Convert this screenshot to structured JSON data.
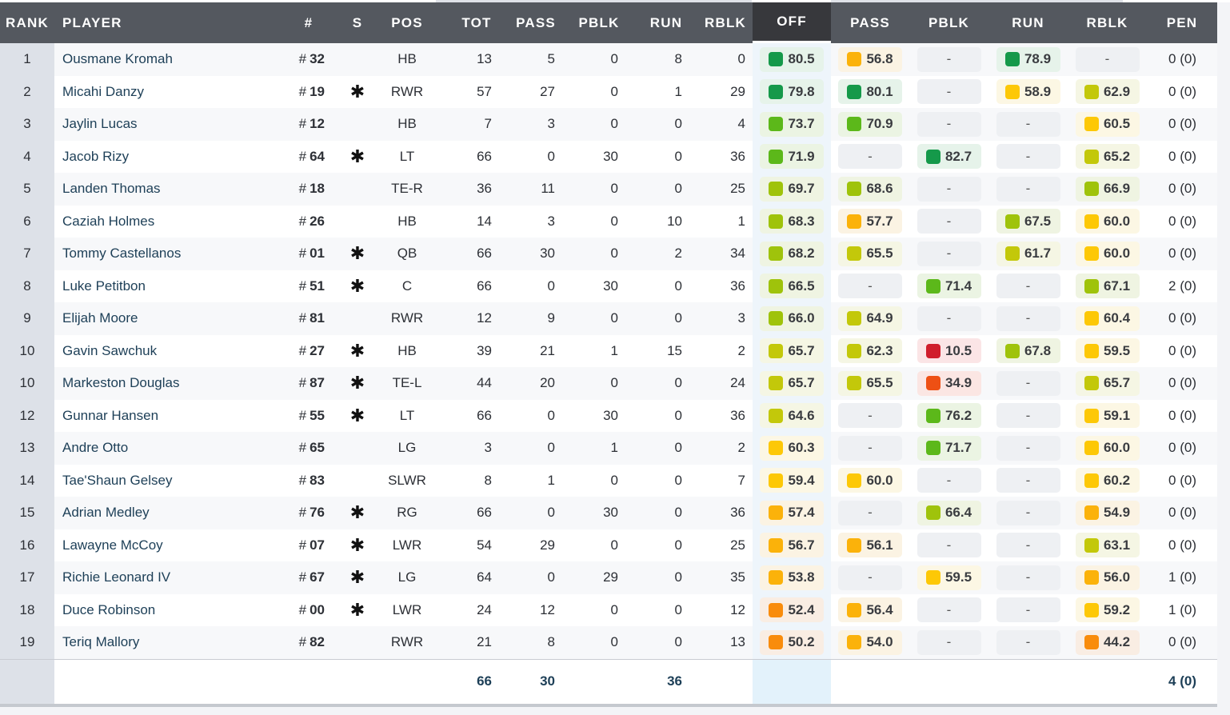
{
  "header": {
    "rank": "RANK",
    "player": "PLAYER",
    "number": "#",
    "starter": "S",
    "pos": "POS",
    "tot": "TOT",
    "pass": "PASS",
    "pblk": "PBLK",
    "run": "RUN",
    "rblk": "RBLK",
    "off": "OFF",
    "grade_pass": "PASS",
    "grade_pblk": "PBLK",
    "grade_run": "RUN",
    "grade_rblk": "RBLK",
    "pen": "PEN"
  },
  "colors": {
    "header_bg": "#54585f",
    "off_header_bg": "#37383c",
    "player_link": "#1d3f57",
    "grade_dark_green": "#15994a",
    "grade_green": "#5cb81a",
    "grade_lime": "#9fc30b",
    "grade_yellow_green": "#c3c80a",
    "grade_yellow": "#fdc806",
    "grade_amber": "#fbb20a",
    "grade_orange": "#f98c0c",
    "grade_red_orange": "#ee5014",
    "grade_red": "#d01e2c"
  },
  "rows": [
    {
      "rank": "1",
      "player": "Ousmane Kromah",
      "num": "32",
      "starter": "",
      "pos": "HB",
      "tot": "13",
      "pass": "5",
      "pblk": "0",
      "run": "8",
      "rblk": "0",
      "off": "80.5",
      "g_pass": "56.8",
      "g_pblk": "-",
      "g_run": "78.9",
      "g_rblk": "-",
      "pen": "0 (0)"
    },
    {
      "rank": "2",
      "player": "Micahi Danzy",
      "num": "19",
      "starter": "*",
      "pos": "RWR",
      "tot": "57",
      "pass": "27",
      "pblk": "0",
      "run": "1",
      "rblk": "29",
      "off": "79.8",
      "g_pass": "80.1",
      "g_pblk": "-",
      "g_run": "58.9",
      "g_rblk": "62.9",
      "pen": "0 (0)"
    },
    {
      "rank": "3",
      "player": "Jaylin Lucas",
      "num": "12",
      "starter": "",
      "pos": "HB",
      "tot": "7",
      "pass": "3",
      "pblk": "0",
      "run": "0",
      "rblk": "4",
      "off": "73.7",
      "g_pass": "70.9",
      "g_pblk": "-",
      "g_run": "-",
      "g_rblk": "60.5",
      "pen": "0 (0)"
    },
    {
      "rank": "4",
      "player": "Jacob Rizy",
      "num": "64",
      "starter": "*",
      "pos": "LT",
      "tot": "66",
      "pass": "0",
      "pblk": "30",
      "run": "0",
      "rblk": "36",
      "off": "71.9",
      "g_pass": "-",
      "g_pblk": "82.7",
      "g_run": "-",
      "g_rblk": "65.2",
      "pen": "0 (0)"
    },
    {
      "rank": "5",
      "player": "Landen Thomas",
      "num": "18",
      "starter": "",
      "pos": "TE-R",
      "tot": "36",
      "pass": "11",
      "pblk": "0",
      "run": "0",
      "rblk": "25",
      "off": "69.7",
      "g_pass": "68.6",
      "g_pblk": "-",
      "g_run": "-",
      "g_rblk": "66.9",
      "pen": "0 (0)"
    },
    {
      "rank": "6",
      "player": "Caziah Holmes",
      "num": "26",
      "starter": "",
      "pos": "HB",
      "tot": "14",
      "pass": "3",
      "pblk": "0",
      "run": "10",
      "rblk": "1",
      "off": "68.3",
      "g_pass": "57.7",
      "g_pblk": "-",
      "g_run": "67.5",
      "g_rblk": "60.0",
      "pen": "0 (0)"
    },
    {
      "rank": "7",
      "player": "Tommy Castellanos",
      "num": "01",
      "starter": "*",
      "pos": "QB",
      "tot": "66",
      "pass": "30",
      "pblk": "0",
      "run": "2",
      "rblk": "34",
      "off": "68.2",
      "g_pass": "65.5",
      "g_pblk": "-",
      "g_run": "61.7",
      "g_rblk": "60.0",
      "pen": "0 (0)"
    },
    {
      "rank": "8",
      "player": "Luke Petitbon",
      "num": "51",
      "starter": "*",
      "pos": "C",
      "tot": "66",
      "pass": "0",
      "pblk": "30",
      "run": "0",
      "rblk": "36",
      "off": "66.5",
      "g_pass": "-",
      "g_pblk": "71.4",
      "g_run": "-",
      "g_rblk": "67.1",
      "pen": "2 (0)"
    },
    {
      "rank": "9",
      "player": "Elijah Moore",
      "num": "81",
      "starter": "",
      "pos": "RWR",
      "tot": "12",
      "pass": "9",
      "pblk": "0",
      "run": "0",
      "rblk": "3",
      "off": "66.0",
      "g_pass": "64.9",
      "g_pblk": "-",
      "g_run": "-",
      "g_rblk": "60.4",
      "pen": "0 (0)"
    },
    {
      "rank": "10",
      "player": "Gavin Sawchuk",
      "num": "27",
      "starter": "*",
      "pos": "HB",
      "tot": "39",
      "pass": "21",
      "pblk": "1",
      "run": "15",
      "rblk": "2",
      "off": "65.7",
      "g_pass": "62.3",
      "g_pblk": "10.5",
      "g_run": "67.8",
      "g_rblk": "59.5",
      "pen": "0 (0)"
    },
    {
      "rank": "10",
      "player": "Markeston Douglas",
      "num": "87",
      "starter": "*",
      "pos": "TE-L",
      "tot": "44",
      "pass": "20",
      "pblk": "0",
      "run": "0",
      "rblk": "24",
      "off": "65.7",
      "g_pass": "65.5",
      "g_pblk": "34.9",
      "g_run": "-",
      "g_rblk": "65.7",
      "pen": "0 (0)"
    },
    {
      "rank": "12",
      "player": "Gunnar Hansen",
      "num": "55",
      "starter": "*",
      "pos": "LT",
      "tot": "66",
      "pass": "0",
      "pblk": "30",
      "run": "0",
      "rblk": "36",
      "off": "64.6",
      "g_pass": "-",
      "g_pblk": "76.2",
      "g_run": "-",
      "g_rblk": "59.1",
      "pen": "0 (0)"
    },
    {
      "rank": "13",
      "player": "Andre Otto",
      "num": "65",
      "starter": "",
      "pos": "LG",
      "tot": "3",
      "pass": "0",
      "pblk": "1",
      "run": "0",
      "rblk": "2",
      "off": "60.3",
      "g_pass": "-",
      "g_pblk": "71.7",
      "g_run": "-",
      "g_rblk": "60.0",
      "pen": "0 (0)"
    },
    {
      "rank": "14",
      "player": "Tae'Shaun Gelsey",
      "num": "83",
      "starter": "",
      "pos": "SLWR",
      "tot": "8",
      "pass": "1",
      "pblk": "0",
      "run": "0",
      "rblk": "7",
      "off": "59.4",
      "g_pass": "60.0",
      "g_pblk": "-",
      "g_run": "-",
      "g_rblk": "60.2",
      "pen": "0 (0)"
    },
    {
      "rank": "15",
      "player": "Adrian Medley",
      "num": "76",
      "starter": "*",
      "pos": "RG",
      "tot": "66",
      "pass": "0",
      "pblk": "30",
      "run": "0",
      "rblk": "36",
      "off": "57.4",
      "g_pass": "-",
      "g_pblk": "66.4",
      "g_run": "-",
      "g_rblk": "54.9",
      "pen": "0 (0)"
    },
    {
      "rank": "16",
      "player": "Lawayne McCoy",
      "num": "07",
      "starter": "*",
      "pos": "LWR",
      "tot": "54",
      "pass": "29",
      "pblk": "0",
      "run": "0",
      "rblk": "25",
      "off": "56.7",
      "g_pass": "56.1",
      "g_pblk": "-",
      "g_run": "-",
      "g_rblk": "63.1",
      "pen": "0 (0)"
    },
    {
      "rank": "17",
      "player": "Richie Leonard IV",
      "num": "67",
      "starter": "*",
      "pos": "LG",
      "tot": "64",
      "pass": "0",
      "pblk": "29",
      "run": "0",
      "rblk": "35",
      "off": "53.8",
      "g_pass": "-",
      "g_pblk": "59.5",
      "g_run": "-",
      "g_rblk": "56.0",
      "pen": "1 (0)"
    },
    {
      "rank": "18",
      "player": "Duce Robinson",
      "num": "00",
      "starter": "*",
      "pos": "LWR",
      "tot": "24",
      "pass": "12",
      "pblk": "0",
      "run": "0",
      "rblk": "12",
      "off": "52.4",
      "g_pass": "56.4",
      "g_pblk": "-",
      "g_run": "-",
      "g_rblk": "59.2",
      "pen": "1 (0)"
    },
    {
      "rank": "19",
      "player": "Teriq Mallory",
      "num": "82",
      "starter": "",
      "pos": "RWR",
      "tot": "21",
      "pass": "8",
      "pblk": "0",
      "run": "0",
      "rblk": "13",
      "off": "50.2",
      "g_pass": "54.0",
      "g_pblk": "-",
      "g_run": "-",
      "g_rblk": "44.2",
      "pen": "0 (0)"
    }
  ],
  "footer": {
    "tot": "66",
    "pass": "30",
    "run": "36",
    "pen": "4 (0)"
  }
}
